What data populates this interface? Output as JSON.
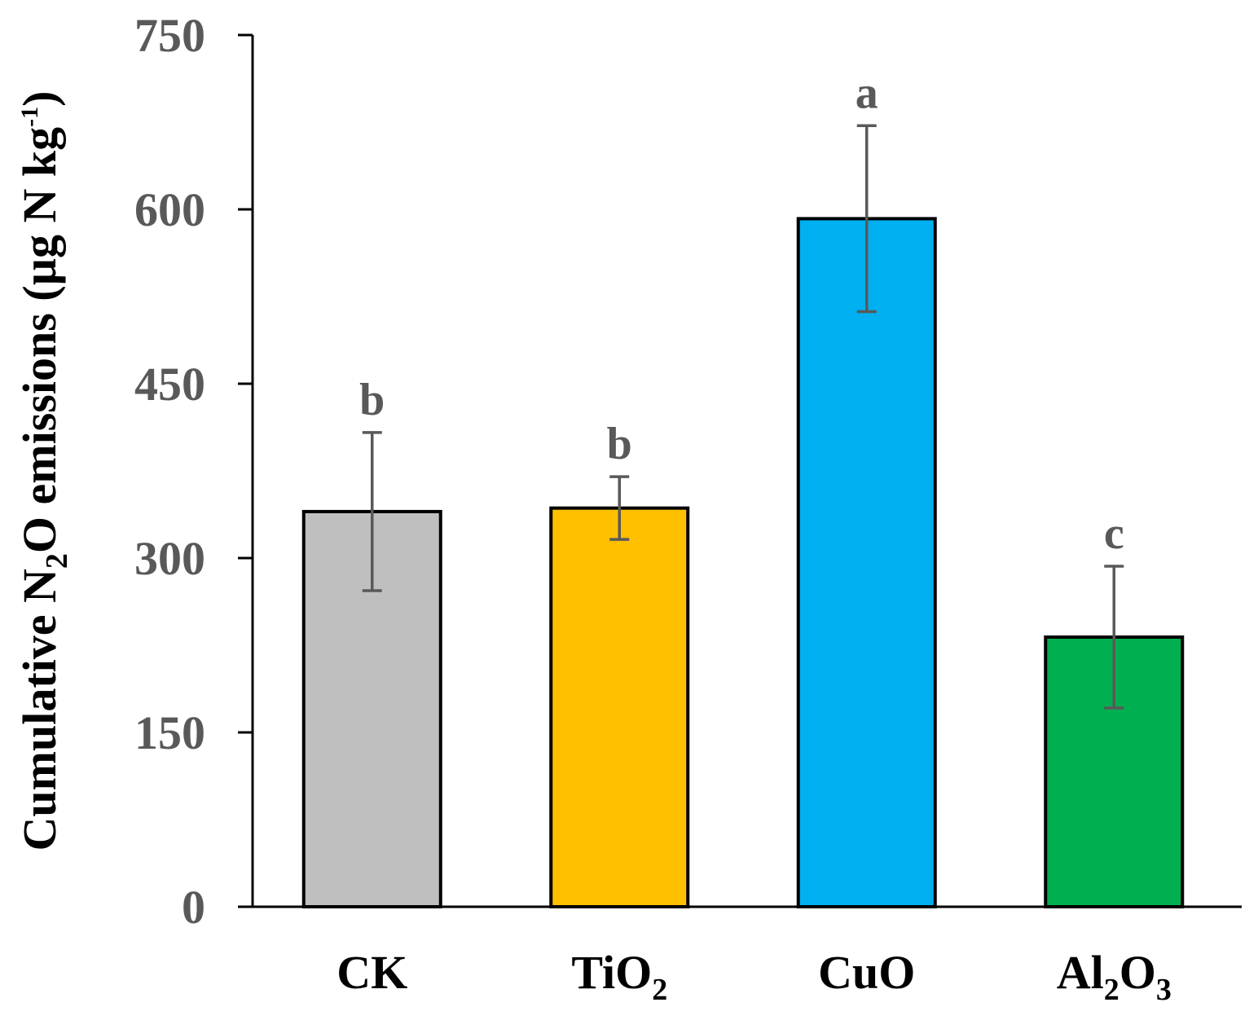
{
  "chart_data": {
    "type": "bar",
    "title": "",
    "xlabel": "",
    "ylabel": {
      "prefix": "Cumulative N",
      "sub": "2",
      "middle": "O emissions (µg N kg",
      "sup": "-1",
      "suffix": ")"
    },
    "ylim": [
      0,
      750
    ],
    "yticks": [
      "0",
      "150",
      "300",
      "450",
      "600",
      "750"
    ],
    "categories": [
      {
        "base": "CK"
      },
      {
        "base": "TiO",
        "sub": "2"
      },
      {
        "base": "CuO"
      },
      {
        "base": "Al",
        "sub": "2",
        "base2": "O",
        "sub2": "3"
      }
    ],
    "values": [
      340,
      343,
      592,
      232
    ],
    "errors": [
      68,
      27,
      80,
      61
    ],
    "significance": [
      "b",
      "b",
      "a",
      "c"
    ],
    "colors": [
      "#bfbfbf",
      "#ffc000",
      "#00b0f0",
      "#00b050"
    ],
    "grid": false,
    "legend": "none"
  }
}
